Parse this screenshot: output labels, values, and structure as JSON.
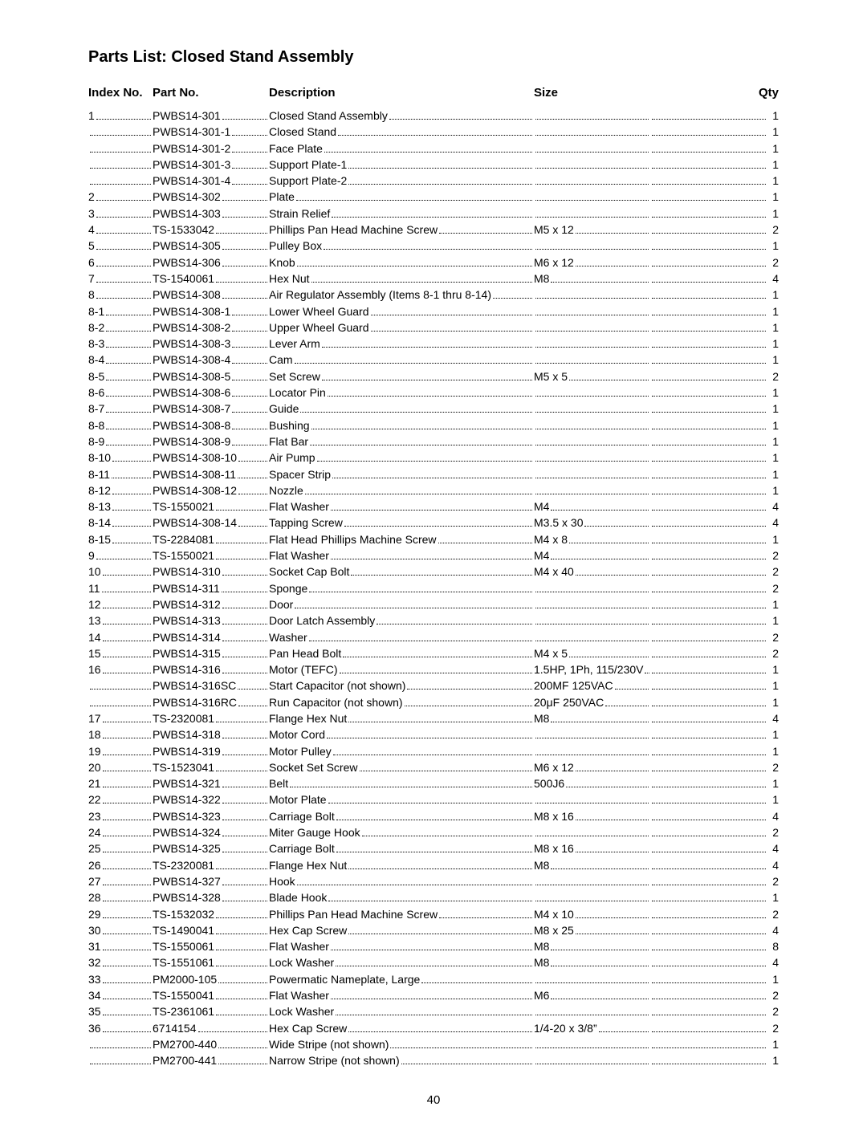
{
  "title": "Parts List: Closed Stand Assembly",
  "headers": {
    "index": "Index No.",
    "part": "Part No.",
    "desc": "Description",
    "size": "Size",
    "qty": "Qty"
  },
  "pageNumber": "40",
  "rows": [
    {
      "index": "1",
      "part": "PWBS14-301",
      "desc": "Closed Stand Assembly",
      "size": "",
      "qty": "1"
    },
    {
      "index": "",
      "part": "PWBS14-301-1",
      "desc": "Closed Stand",
      "size": "",
      "qty": "1"
    },
    {
      "index": "",
      "part": "PWBS14-301-2",
      "desc": "Face Plate",
      "size": "",
      "qty": "1"
    },
    {
      "index": "",
      "part": "PWBS14-301-3",
      "desc": "Support Plate-1",
      "size": "",
      "qty": "1"
    },
    {
      "index": "",
      "part": "PWBS14-301-4",
      "desc": "Support Plate-2",
      "size": "",
      "qty": "1"
    },
    {
      "index": "2",
      "part": "PWBS14-302",
      "desc": "Plate",
      "size": "",
      "qty": "1"
    },
    {
      "index": "3",
      "part": "PWBS14-303",
      "desc": "Strain Relief",
      "size": "",
      "qty": "1"
    },
    {
      "index": "4",
      "part": "TS-1533042",
      "desc": "Phillips Pan Head Machine Screw",
      "size": "M5 x 12",
      "qty": "2"
    },
    {
      "index": "5",
      "part": "PWBS14-305",
      "desc": "Pulley Box",
      "size": "",
      "qty": "1"
    },
    {
      "index": "6",
      "part": "PWBS14-306",
      "desc": "Knob",
      "size": "M6 x 12",
      "qty": "2"
    },
    {
      "index": "7",
      "part": "TS-1540061",
      "desc": "Hex Nut",
      "size": "M8",
      "qty": "4"
    },
    {
      "index": "8",
      "part": "PWBS14-308",
      "desc": "Air Regulator Assembly (Items 8-1 thru 8-14)",
      "size": "",
      "qty": "1"
    },
    {
      "index": "8-1",
      "part": "PWBS14-308-1",
      "desc": "Lower Wheel Guard",
      "size": "",
      "qty": "1"
    },
    {
      "index": "8-2",
      "part": "PWBS14-308-2",
      "desc": "Upper Wheel Guard",
      "size": "",
      "qty": "1"
    },
    {
      "index": "8-3",
      "part": "PWBS14-308-3",
      "desc": "Lever Arm",
      "size": "",
      "qty": "1"
    },
    {
      "index": "8-4",
      "part": "PWBS14-308-4",
      "desc": "Cam",
      "size": "",
      "qty": "1"
    },
    {
      "index": "8-5",
      "part": "PWBS14-308-5",
      "desc": "Set Screw",
      "size": "M5 x 5",
      "qty": "2"
    },
    {
      "index": "8-6",
      "part": "PWBS14-308-6",
      "desc": "Locator Pin",
      "size": "",
      "qty": "1"
    },
    {
      "index": "8-7",
      "part": "PWBS14-308-7",
      "desc": "Guide",
      "size": "",
      "qty": "1"
    },
    {
      "index": "8-8",
      "part": "PWBS14-308-8",
      "desc": "Bushing",
      "size": "",
      "qty": "1"
    },
    {
      "index": "8-9",
      "part": "PWBS14-308-9",
      "desc": "Flat Bar",
      "size": "",
      "qty": "1"
    },
    {
      "index": "8-10",
      "part": "PWBS14-308-10",
      "desc": "Air Pump",
      "size": "",
      "qty": "1"
    },
    {
      "index": "8-11",
      "part": "PWBS14-308-11",
      "desc": "Spacer Strip",
      "size": "",
      "qty": "1"
    },
    {
      "index": "8-12",
      "part": "PWBS14-308-12",
      "desc": "Nozzle",
      "size": "",
      "qty": "1"
    },
    {
      "index": "8-13",
      "part": "TS-1550021",
      "desc": "Flat Washer",
      "size": "M4",
      "qty": "4"
    },
    {
      "index": "8-14",
      "part": "PWBS14-308-14",
      "desc": "Tapping Screw",
      "size": "M3.5 x 30",
      "qty": "4"
    },
    {
      "index": "8-15",
      "part": "TS-2284081",
      "desc": "Flat Head Phillips Machine Screw",
      "size": "M4 x 8",
      "qty": "1"
    },
    {
      "index": "9",
      "part": "TS-1550021",
      "desc": "Flat Washer",
      "size": "M4",
      "qty": "2"
    },
    {
      "index": "10",
      "part": "PWBS14-310",
      "desc": "Socket Cap Bolt",
      "size": "M4 x 40",
      "qty": "2"
    },
    {
      "index": "11",
      "part": "PWBS14-311",
      "desc": "Sponge",
      "size": "",
      "qty": "2"
    },
    {
      "index": "12",
      "part": "PWBS14-312",
      "desc": "Door",
      "size": "",
      "qty": "1"
    },
    {
      "index": "13",
      "part": "PWBS14-313",
      "desc": "Door Latch Assembly",
      "size": "",
      "qty": "1"
    },
    {
      "index": "14",
      "part": "PWBS14-314",
      "desc": "Washer",
      "size": "",
      "qty": "2"
    },
    {
      "index": "15",
      "part": "PWBS14-315",
      "desc": "Pan Head Bolt",
      "size": "M4 x 5",
      "qty": "2"
    },
    {
      "index": "16",
      "part": "PWBS14-316",
      "desc": "Motor (TEFC)",
      "size": "1.5HP, 1Ph, 115/230V",
      "qty": "1"
    },
    {
      "index": "",
      "part": "PWBS14-316SC",
      "desc": "Start Capacitor (not shown)",
      "size": "200MF 125VAC",
      "qty": "1"
    },
    {
      "index": "",
      "part": "PWBS14-316RC",
      "desc": "Run Capacitor (not shown)",
      "size": "20μF 250VAC",
      "qty": "1"
    },
    {
      "index": "17",
      "part": "TS-2320081",
      "desc": "Flange Hex Nut",
      "size": "M8",
      "qty": "4"
    },
    {
      "index": "18",
      "part": "PWBS14-318",
      "desc": "Motor Cord",
      "size": "",
      "qty": "1"
    },
    {
      "index": "19",
      "part": "PWBS14-319",
      "desc": "Motor Pulley",
      "size": "",
      "qty": "1"
    },
    {
      "index": "20",
      "part": "TS-1523041",
      "desc": "Socket Set Screw",
      "size": "M6 x 12",
      "qty": "2"
    },
    {
      "index": "21",
      "part": "PWBS14-321",
      "desc": "Belt",
      "size": "500J6",
      "qty": "1"
    },
    {
      "index": "22",
      "part": "PWBS14-322",
      "desc": "Motor Plate",
      "size": "",
      "qty": "1"
    },
    {
      "index": "23",
      "part": "PWBS14-323",
      "desc": "Carriage Bolt",
      "size": "M8 x 16",
      "qty": "4"
    },
    {
      "index": "24",
      "part": "PWBS14-324",
      "desc": "Miter Gauge Hook",
      "size": "",
      "qty": "2"
    },
    {
      "index": "25",
      "part": "PWBS14-325",
      "desc": "Carriage Bolt",
      "size": "M8 x 16",
      "qty": "4"
    },
    {
      "index": "26",
      "part": "TS-2320081",
      "desc": "Flange Hex Nut",
      "size": "M8",
      "qty": "4"
    },
    {
      "index": "27",
      "part": "PWBS14-327",
      "desc": "Hook",
      "size": "",
      "qty": "2"
    },
    {
      "index": "28",
      "part": "PWBS14-328",
      "desc": "Blade Hook",
      "size": "",
      "qty": "1"
    },
    {
      "index": "29",
      "part": "TS-1532032",
      "desc": "Phillips Pan Head Machine Screw",
      "size": "M4 x 10",
      "qty": "2"
    },
    {
      "index": "30",
      "part": "TS-1490041",
      "desc": "Hex Cap Screw",
      "size": "M8 x 25",
      "qty": "4"
    },
    {
      "index": "31",
      "part": "TS-1550061",
      "desc": "Flat Washer",
      "size": "M8",
      "qty": "8"
    },
    {
      "index": "32",
      "part": "TS-1551061",
      "desc": "Lock Washer",
      "size": "M8",
      "qty": "4"
    },
    {
      "index": "33",
      "part": "PM2000-105",
      "desc": "Powermatic Nameplate, Large",
      "size": "",
      "qty": "1"
    },
    {
      "index": "34",
      "part": "TS-1550041",
      "desc": "Flat Washer",
      "size": "M6",
      "qty": "2"
    },
    {
      "index": "35",
      "part": "TS-2361061",
      "desc": "Lock Washer",
      "size": "",
      "qty": "2"
    },
    {
      "index": "36",
      "part": "6714154",
      "desc": "Hex Cap Screw",
      "size": "1/4-20 x 3/8”",
      "qty": "2"
    },
    {
      "index": "",
      "part": "PM2700-440",
      "desc": "Wide Stripe (not shown)",
      "size": "",
      "qty": "1"
    },
    {
      "index": "",
      "part": "PM2700-441",
      "desc": "Narrow Stripe (not shown)",
      "size": "",
      "qty": "1"
    }
  ]
}
